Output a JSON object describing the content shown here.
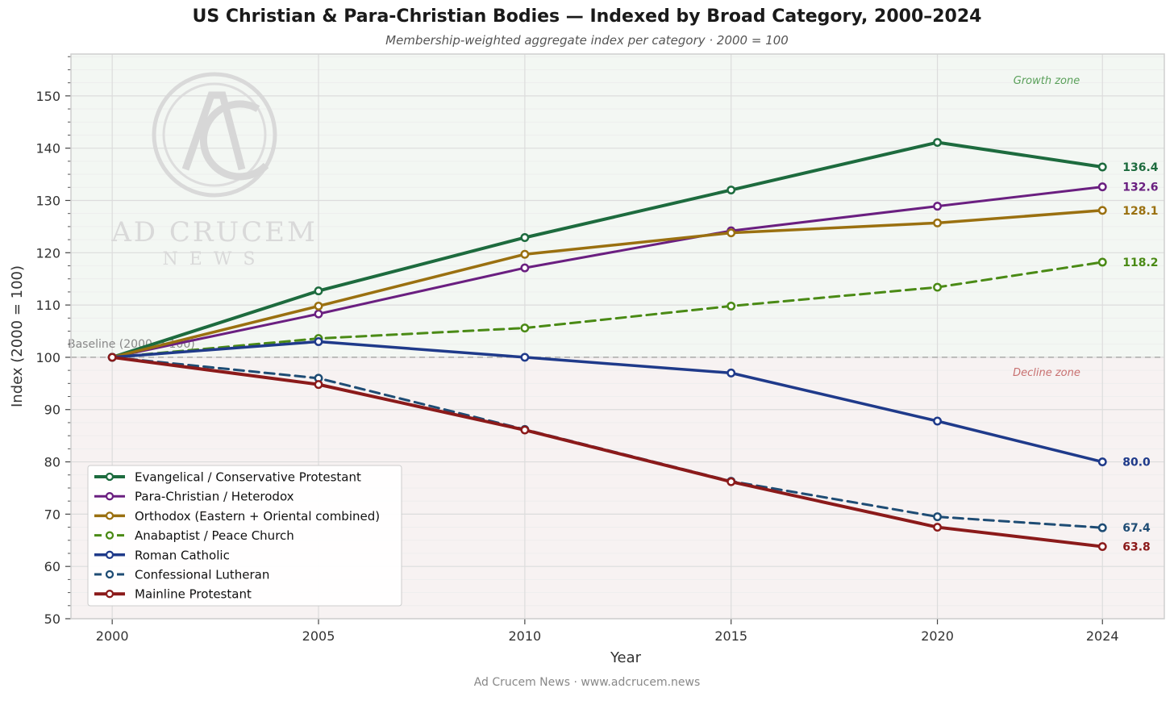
{
  "header": {
    "title": "US Christian & Para-Christian Bodies — Indexed by Broad Category, 2000–2024",
    "subtitle": "Membership-weighted aggregate index per category  ·  2000 = 100"
  },
  "footer": {
    "text": "Ad Crucem News  ·  www.adcrucem.news"
  },
  "watermark": {
    "line1": "AD CRUCEM",
    "line2": "NEWS"
  },
  "chart_data": {
    "type": "line",
    "title": "US Christian & Para-Christian Bodies — Indexed by Broad Category, 2000–2024",
    "subtitle": "Membership-weighted aggregate index per category  ·  2000 = 100",
    "xlabel": "Year",
    "ylabel": "Index (2000 = 100)",
    "x": [
      2000,
      2005,
      2010,
      2015,
      2020,
      2024
    ],
    "xlim": [
      1999,
      2025.5
    ],
    "ylim": [
      50,
      158
    ],
    "yticks": [
      50,
      60,
      70,
      80,
      90,
      100,
      110,
      120,
      130,
      140,
      150
    ],
    "grid": true,
    "legend_position": "lower-left",
    "baseline": {
      "value": 100,
      "label": "Baseline (2000 = 100)"
    },
    "zones": [
      {
        "label": "Growth zone",
        "color": "#5aa05a"
      },
      {
        "label": "Decline zone",
        "color": "#c87070"
      }
    ],
    "series": [
      {
        "name": "Evangelical / Conservative Protestant",
        "color": "#1d6b3e",
        "dashed": false,
        "width": 4,
        "values": [
          100,
          112.7,
          122.9,
          132.0,
          141.1,
          136.4
        ],
        "end_label": "136.4"
      },
      {
        "name": "Para-Christian / Heterodox",
        "color": "#6a1f80",
        "dashed": false,
        "width": 3,
        "values": [
          100,
          108.3,
          117.1,
          124.2,
          128.9,
          132.6
        ],
        "end_label": "132.6"
      },
      {
        "name": "Orthodox (Eastern + Oriental combined)",
        "color": "#9a7010",
        "dashed": false,
        "width": 3.5,
        "values": [
          100,
          109.8,
          119.7,
          123.8,
          125.7,
          128.1
        ],
        "end_label": "128.1"
      },
      {
        "name": "Anabaptist / Peace Church",
        "color": "#4a8a15",
        "dashed": true,
        "width": 3,
        "values": [
          100,
          103.6,
          105.6,
          109.8,
          113.4,
          118.2
        ],
        "end_label": "118.2"
      },
      {
        "name": "Roman Catholic",
        "color": "#1f3a8a",
        "dashed": false,
        "width": 3.5,
        "values": [
          100,
          103.0,
          100.0,
          97.0,
          87.8,
          80.0
        ],
        "end_label": "80.0"
      },
      {
        "name": "Confessional Lutheran",
        "color": "#1e4c74",
        "dashed": true,
        "width": 3,
        "values": [
          100,
          96.0,
          86.2,
          76.3,
          69.5,
          67.4
        ],
        "end_label": "67.4"
      },
      {
        "name": "Mainline Protestant",
        "color": "#8b1a1a",
        "dashed": false,
        "width": 4,
        "values": [
          100,
          94.8,
          86.1,
          76.2,
          67.5,
          63.8
        ],
        "end_label": "63.8"
      }
    ]
  }
}
